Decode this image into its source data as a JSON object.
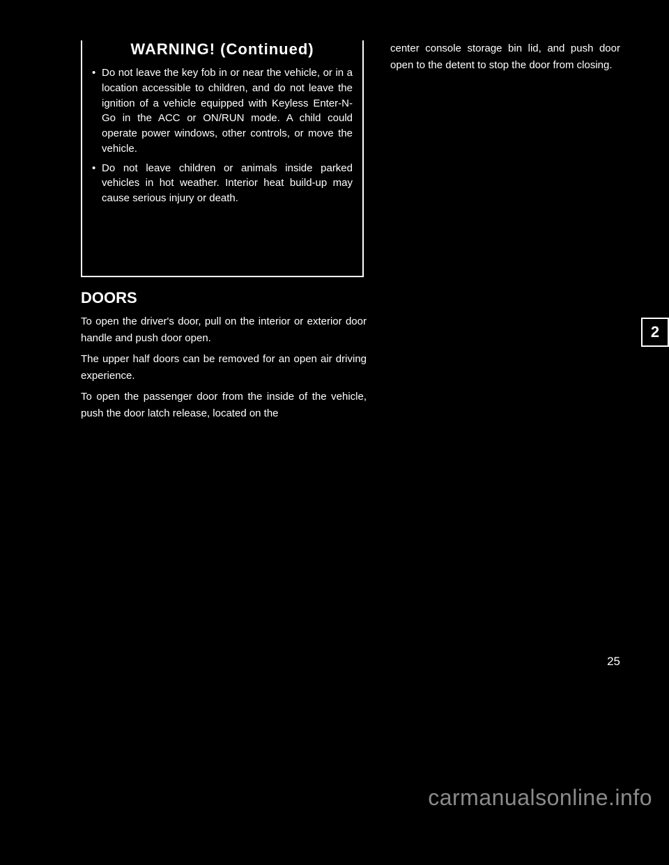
{
  "colors": {
    "background": "#000000",
    "text": "#ffffff",
    "watermark": "#8a8a8a",
    "border": "#ffffff"
  },
  "typography": {
    "body_fontsize": 15,
    "title_fontsize": 22,
    "watermark_fontsize": 32,
    "page_number_fontsize": 17,
    "tab_fontsize": 22
  },
  "warning_box": {
    "title": "WARNING! (Continued)",
    "items": [
      "Do not leave the key fob in or near the vehicle, or in a location accessible to children, and do not leave the ignition of a vehicle equipped with Keyless Enter-N-Go in the ACC or ON/RUN mode. A child could operate power windows, other controls, or move the vehicle.",
      "Do not leave children or animals inside parked vehicles in hot weather. Interior heat build-up may cause serious injury or death."
    ]
  },
  "section": {
    "title": "DOORS",
    "paragraphs": [
      "To open the driver's door, pull on the interior or exterior door handle and push door open.",
      "The upper half doors can be removed for an open air driving experience.",
      "To open the passenger door from the inside of the vehicle, push the door latch release, located on the"
    ]
  },
  "col2_paragraphs": [
    "center console storage bin lid, and push door open to the detent to stop the door from closing."
  ],
  "chapter_tab": "2",
  "page_number": "25",
  "watermark": "carmanualsonline.info"
}
